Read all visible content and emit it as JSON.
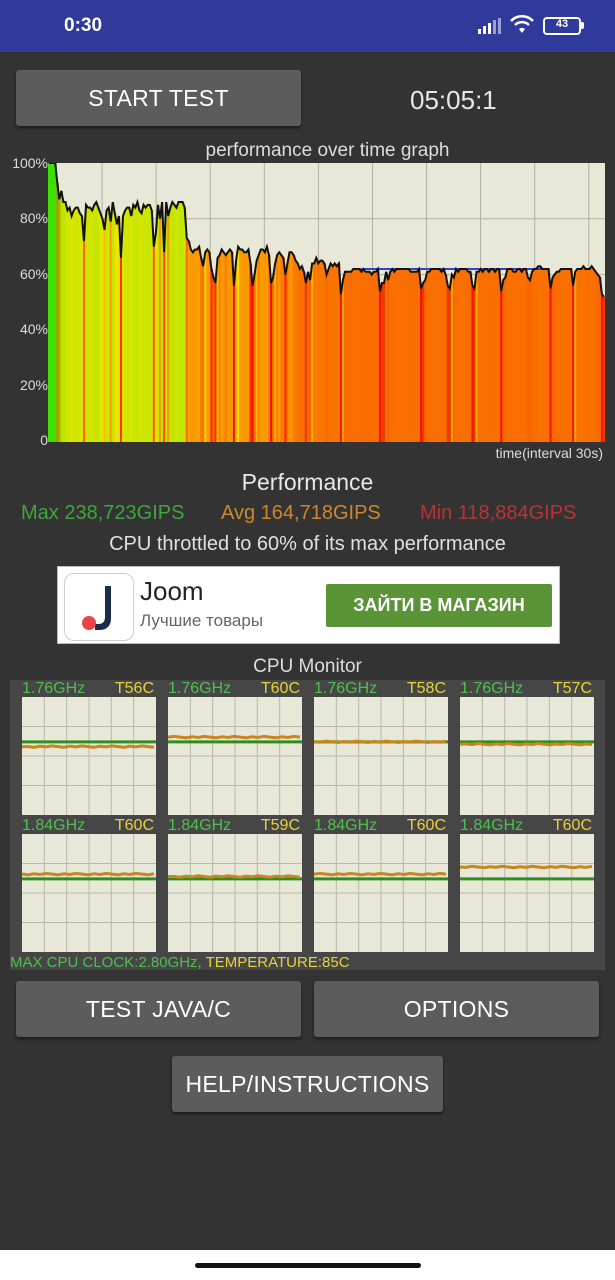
{
  "status_bar": {
    "time": "0:30",
    "battery": "43",
    "icons": [
      "signal-icon",
      "wifi-icon",
      "battery-icon"
    ]
  },
  "header": {
    "start_label": "START TEST",
    "timer": "05:05:1"
  },
  "perf_graph": {
    "title": "performance over time graph",
    "y_ticks": [
      "100%",
      "80%",
      "60%",
      "40%",
      "20%",
      "0"
    ],
    "x_label": "time(interval 30s)"
  },
  "chart_data": {
    "type": "area",
    "title": "performance over time graph",
    "xlabel": "time(interval 30s)",
    "ylabel": "",
    "ylim": [
      0,
      100
    ],
    "y_unit": "%",
    "grid": true,
    "series": [
      {
        "values": [
          100,
          100,
          100,
          100,
          93,
          87,
          90,
          86,
          86,
          83,
          84,
          81,
          83,
          84,
          84,
          82,
          81,
          72,
          85,
          84,
          84,
          83,
          85,
          86,
          84,
          82,
          80,
          76,
          83,
          84,
          79,
          86,
          82,
          78,
          81,
          66,
          81,
          83,
          84,
          84,
          81,
          85,
          84,
          86,
          83,
          82,
          85,
          84,
          85,
          85,
          83,
          70,
          75,
          85,
          80,
          86,
          68,
          86,
          81,
          84,
          86,
          85,
          84,
          86,
          86,
          86,
          84,
          73,
          72,
          69,
          68,
          69,
          69,
          70,
          66,
          63,
          68,
          69,
          68,
          62,
          59,
          57,
          66,
          67,
          69,
          68,
          67,
          68,
          69,
          68,
          56,
          65,
          70,
          69,
          69,
          68,
          68,
          69,
          64,
          56,
          60,
          65,
          67,
          69,
          69,
          68,
          70,
          67,
          57,
          59,
          64,
          67,
          68,
          67,
          66,
          60,
          64,
          68,
          68,
          67,
          65,
          64,
          62,
          63,
          61,
          57,
          61,
          58,
          64,
          64,
          66,
          64,
          65,
          65,
          64,
          60,
          62,
          64,
          63,
          64,
          63,
          64,
          53,
          58,
          61,
          61,
          61,
          61,
          62,
          62,
          62,
          62,
          61,
          62,
          61,
          61,
          61,
          60,
          61,
          61,
          62,
          54,
          57,
          57,
          61,
          58,
          61,
          62,
          61,
          62,
          62,
          62,
          62,
          62,
          62,
          62,
          61,
          61,
          61,
          61,
          62,
          55,
          57,
          58,
          61,
          61,
          62,
          62,
          62,
          62,
          62,
          61,
          62,
          60,
          56,
          55,
          60,
          59,
          62,
          61,
          62,
          62,
          62,
          62,
          61,
          61,
          56,
          55,
          61,
          61,
          62,
          61,
          62,
          62,
          61,
          62,
          62,
          61,
          62,
          62,
          54,
          58,
          59,
          62,
          62,
          62,
          61,
          61,
          62,
          62,
          61,
          62,
          62,
          59,
          58,
          61,
          62,
          62,
          63,
          63,
          62,
          62,
          62,
          62,
          55,
          59,
          60,
          61,
          61,
          62,
          62,
          62,
          62,
          62,
          62,
          56,
          61,
          62,
          62,
          62,
          63,
          62,
          62,
          62,
          63,
          62,
          61,
          60,
          59,
          53,
          52
        ]
      },
      {
        "name": "",
        "x_start": 152,
        "values": [
          62,
          62,
          62,
          62,
          62,
          62,
          62,
          62,
          62,
          62,
          62,
          62,
          62,
          62,
          62,
          62,
          62,
          62,
          62,
          62,
          62,
          62,
          62,
          62,
          62,
          62,
          62,
          62,
          62,
          62,
          62,
          62,
          62,
          62,
          62,
          62,
          62,
          62,
          62,
          62,
          62,
          62,
          62,
          62,
          62,
          62,
          62,
          62,
          62,
          62,
          62,
          62,
          62,
          62,
          62,
          62,
          62,
          62,
          62,
          62,
          62,
          62,
          62,
          62,
          62,
          62,
          62,
          62,
          62,
          62,
          62,
          62,
          62,
          62,
          62,
          62,
          62,
          62,
          62,
          62,
          62,
          62,
          62,
          62,
          62,
          62,
          62,
          62,
          62,
          62,
          62,
          62,
          62
        ]
      }
    ]
  },
  "performance": {
    "heading": "Performance",
    "max": "Max 238,723GIPS",
    "avg": "Avg 164,718GIPS",
    "min": "Min 118,884GIPS",
    "throttle": "CPU throttled to 60% of its max performance"
  },
  "ad": {
    "name": "Joom",
    "subtitle": "Лучшие товары",
    "cta": "ЗАЙТИ В МАГАЗИН"
  },
  "cpu_monitor": {
    "title": "CPU Monitor",
    "cores": [
      {
        "freq": "1.76GHz",
        "temp": "T56C",
        "line": 0.58
      },
      {
        "freq": "1.76GHz",
        "temp": "T60C",
        "line": 0.66
      },
      {
        "freq": "1.76GHz",
        "temp": "T58C",
        "line": 0.62
      },
      {
        "freq": "1.76GHz",
        "temp": "T57C",
        "line": 0.6
      },
      {
        "freq": "1.84GHz",
        "temp": "T60C",
        "line": 0.66
      },
      {
        "freq": "1.84GHz",
        "temp": "T59C",
        "line": 0.64
      },
      {
        "freq": "1.84GHz",
        "temp": "T60C",
        "line": 0.66
      },
      {
        "freq": "1.84GHz",
        "temp": "T60C",
        "line": 0.72
      }
    ],
    "footer_clock": "MAX CPU CLOCK:2.80GHz,",
    "footer_temp": " TEMPERATURE:85C"
  },
  "buttons": {
    "java": "TEST JAVA/C",
    "options": "OPTIONS",
    "help": "HELP/INSTRUCTIONS"
  }
}
